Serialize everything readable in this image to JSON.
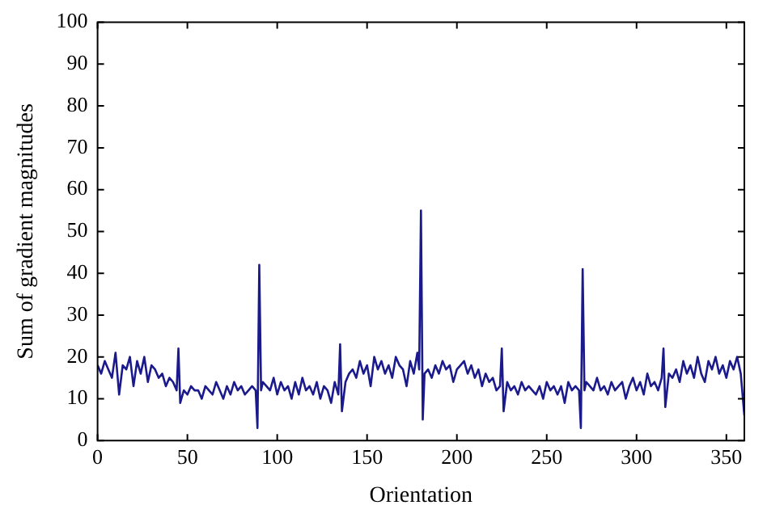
{
  "chart_data": {
    "type": "line",
    "xlabel": "Orientation",
    "ylabel": "Sum of gradient magnitudes",
    "x": [
      0,
      2,
      4,
      6,
      8,
      10,
      12,
      14,
      16,
      18,
      20,
      22,
      24,
      26,
      28,
      30,
      32,
      34,
      36,
      38,
      40,
      42,
      44,
      45,
      46,
      48,
      50,
      52,
      54,
      56,
      58,
      60,
      62,
      64,
      66,
      68,
      70,
      72,
      74,
      76,
      78,
      80,
      82,
      84,
      86,
      88,
      89,
      90,
      91,
      92,
      94,
      96,
      98,
      100,
      102,
      104,
      106,
      108,
      110,
      112,
      114,
      116,
      118,
      120,
      122,
      124,
      126,
      128,
      130,
      132,
      134,
      135,
      136,
      138,
      140,
      142,
      144,
      146,
      148,
      150,
      152,
      154,
      156,
      158,
      160,
      162,
      164,
      166,
      168,
      170,
      172,
      174,
      176,
      178,
      179,
      180,
      181,
      182,
      184,
      186,
      188,
      190,
      192,
      194,
      196,
      198,
      200,
      202,
      204,
      206,
      208,
      210,
      212,
      214,
      216,
      218,
      220,
      222,
      224,
      225,
      226,
      228,
      230,
      232,
      234,
      236,
      238,
      240,
      242,
      244,
      246,
      248,
      250,
      252,
      254,
      256,
      258,
      260,
      262,
      264,
      266,
      268,
      269,
      270,
      271,
      272,
      274,
      276,
      278,
      280,
      282,
      284,
      286,
      288,
      290,
      292,
      294,
      296,
      298,
      300,
      302,
      304,
      306,
      308,
      310,
      312,
      314,
      315,
      316,
      318,
      320,
      322,
      324,
      326,
      328,
      330,
      332,
      334,
      336,
      338,
      340,
      342,
      344,
      346,
      348,
      350,
      352,
      354,
      356,
      358,
      360
    ],
    "series": [
      {
        "color": "#1a1a8c",
        "values": [
          18,
          16,
          19,
          17,
          15,
          21,
          11,
          18,
          17,
          20,
          13,
          19,
          16,
          20,
          14,
          18,
          17,
          15,
          16,
          13,
          15,
          14,
          12,
          22,
          9,
          12,
          11,
          13,
          12,
          12,
          10,
          13,
          12,
          11,
          14,
          12,
          10,
          13,
          11,
          14,
          12,
          13,
          11,
          12,
          13,
          12,
          3,
          42,
          12,
          14,
          13,
          12,
          15,
          11,
          14,
          12,
          13,
          10,
          14,
          11,
          15,
          12,
          13,
          11,
          14,
          10,
          13,
          12,
          9,
          14,
          11,
          23,
          7,
          14,
          16,
          17,
          15,
          19,
          16,
          18,
          13,
          20,
          17,
          19,
          16,
          18,
          15,
          20,
          18,
          17,
          13,
          19,
          16,
          21,
          17,
          55,
          5,
          16,
          17,
          15,
          18,
          16,
          19,
          17,
          18,
          14,
          17,
          18,
          19,
          16,
          18,
          15,
          17,
          13,
          16,
          14,
          15,
          12,
          13,
          22,
          7,
          14,
          12,
          13,
          11,
          14,
          12,
          13,
          12,
          11,
          13,
          10,
          14,
          12,
          13,
          11,
          13,
          9,
          14,
          12,
          13,
          12,
          3,
          41,
          12,
          14,
          13,
          12,
          15,
          12,
          13,
          11,
          14,
          12,
          13,
          14,
          10,
          13,
          15,
          12,
          14,
          11,
          16,
          13,
          14,
          12,
          15,
          22,
          8,
          16,
          15,
          17,
          14,
          19,
          16,
          18,
          15,
          20,
          16,
          14,
          19,
          17,
          20,
          16,
          18,
          15,
          19,
          17,
          20,
          16,
          6
        ]
      }
    ],
    "xlim": [
      0,
      360
    ],
    "xticks": [
      0,
      50,
      100,
      150,
      200,
      250,
      300,
      350
    ],
    "ylim": [
      0,
      100
    ],
    "yticks": [
      0,
      10,
      20,
      30,
      40,
      50,
      60,
      70,
      80,
      90,
      100
    ],
    "grid": false,
    "legend": false,
    "marker": "none",
    "line_style": "solid"
  }
}
